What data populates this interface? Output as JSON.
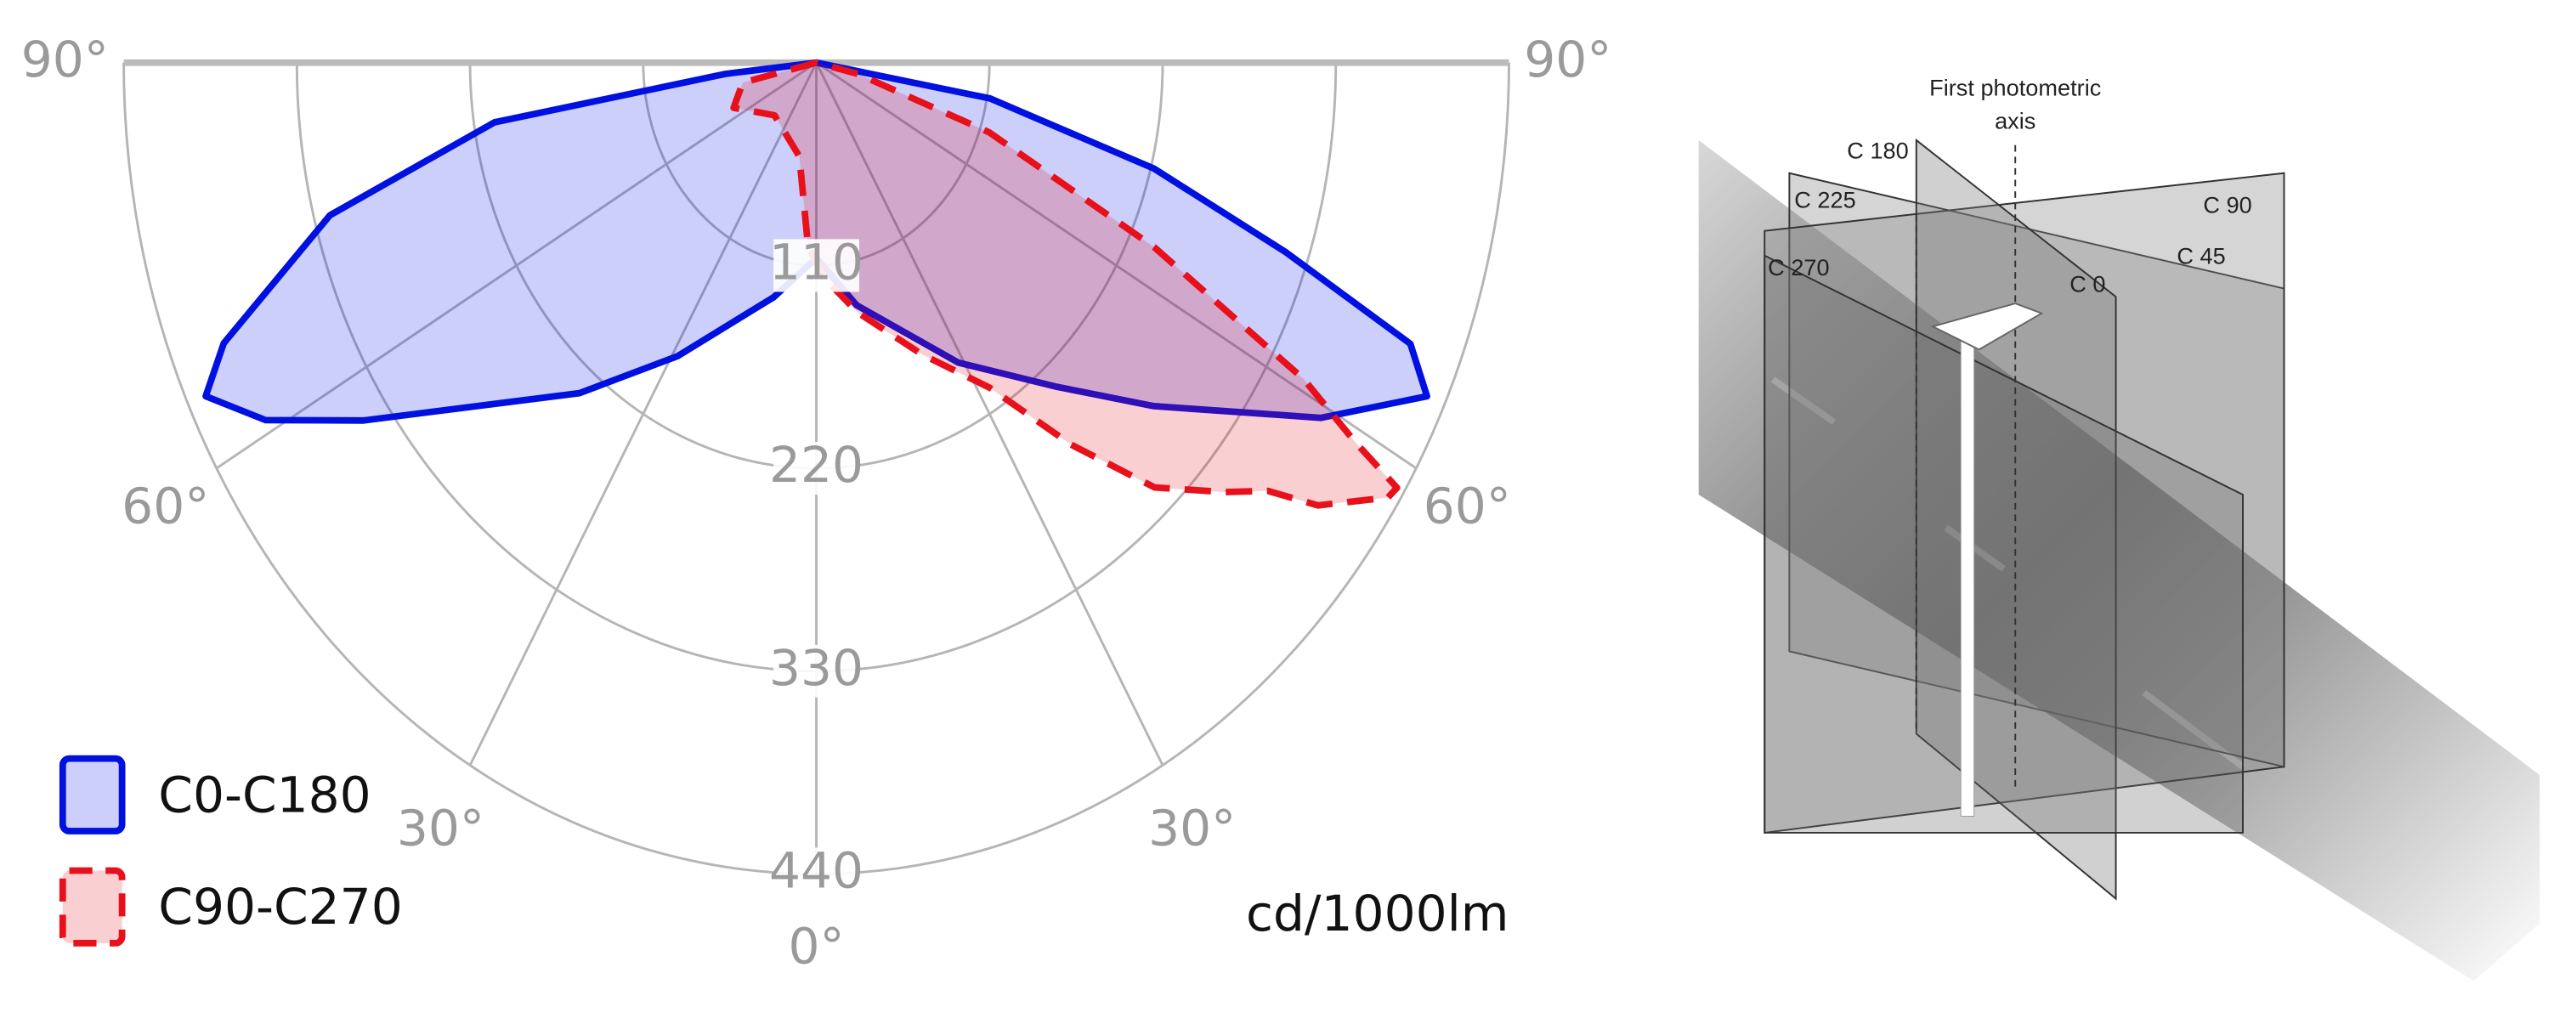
{
  "chart_data": {
    "type": "polar",
    "unit": "cd/1000lm",
    "ylim": [
      0,
      440
    ],
    "yticks": [
      110,
      220,
      330,
      440
    ],
    "xlim": [
      -90,
      90
    ],
    "xticks": [
      {
        "value": -90,
        "label": "90°"
      },
      {
        "value": -60,
        "label": "60°"
      },
      {
        "value": -30,
        "label": "30°"
      },
      {
        "value": 0,
        "label": "0°"
      },
      {
        "value": 30,
        "label": "30°"
      },
      {
        "value": 60,
        "label": "60°"
      },
      {
        "value": 90,
        "label": "90°"
      }
    ],
    "grid": true,
    "legend": "bottom-left",
    "series": [
      {
        "name": "C0-C180",
        "color": "#0010e0",
        "line_style": "solid",
        "x": [
          -90,
          -84,
          -81,
          -75,
          -68,
          -65,
          -61,
          -56,
          -40,
          -29,
          -12,
          0,
          11,
          29,
          41,
          49,
          59,
          65,
          68,
          71,
          75,
          80,
          90
        ],
        "values": [
          0,
          58,
          207,
          320,
          406,
          428,
          400,
          347,
          234,
          182,
          130,
          106,
          134,
          186,
          233,
          284,
          374,
          428,
          407,
          315,
          222,
          112,
          0
        ]
      },
      {
        "name": "C90-C270",
        "color": "#e8101a",
        "line_style": "dashed",
        "x": [
          -90,
          -77,
          -65,
          -43,
          -12,
          -3,
          3,
          11,
          23,
          32,
          38,
          43,
          48,
          51,
          53,
          57,
          58,
          59,
          61,
          65,
          71,
          77,
          90
        ],
        "values": [
          0,
          48,
          58,
          39,
          52,
          100,
          118,
          138,
          172,
          208,
          263,
          315,
          348,
          369,
          399,
          433,
          435,
          399,
          354,
          237,
          116,
          27,
          0
        ]
      }
    ]
  },
  "diagram": {
    "axis_label": [
      "First photometric",
      "axis"
    ],
    "planes": [
      "C 180",
      "C 225",
      "C 90",
      "C 270",
      "C 0",
      "C 45"
    ]
  }
}
